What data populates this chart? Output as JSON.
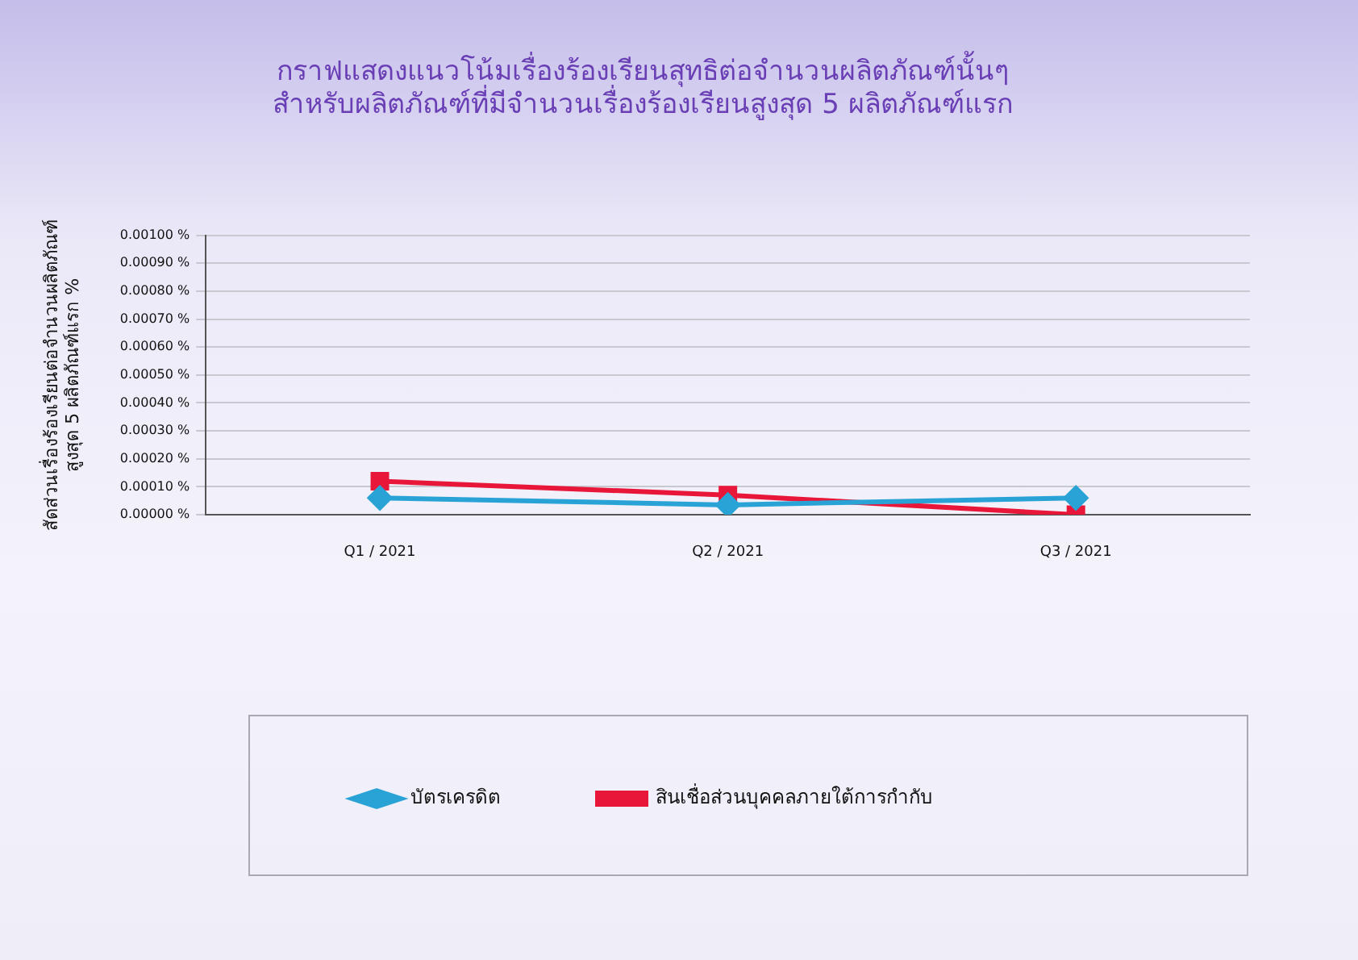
{
  "chart_data": {
    "type": "line",
    "title": "กราฟแสดงแนวโน้มเรื่องร้องเรียนสุทธิต่อจำนวนผลิตภัณฑ์นั้นๆ\nสำหรับผลิตภัณฑ์ที่มีจำนวนเรื่องร้องเรียนสูงสุด 5 ผลิตภัณฑ์แรก",
    "ylabel": "สัดส่วนเรื่องร้องเรียนต่อจำนวนผลิตภัณฑ์\nสูงสุด 5 ผลิตภัณฑ์แรก %",
    "categories": [
      "Q1 / 2021",
      "Q2 / 2021",
      "Q3 / 2021"
    ],
    "series": [
      {
        "name": "บัตรเครดิต",
        "color": "#29a3d6",
        "marker": "diamond",
        "values": [
          6e-05,
          3.5e-05,
          6e-05
        ]
      },
      {
        "name": "สินเชื่อส่วนบุคคลภายใต้การกำกับ",
        "color": "#e8173a",
        "marker": "square",
        "values": [
          0.00012,
          7e-05,
          0
        ]
      }
    ],
    "ylim": [
      0,
      0.001
    ],
    "yticks": [
      {
        "value": 0,
        "label": "0.00000 %"
      },
      {
        "value": 0.0001,
        "label": "0.00010 %"
      },
      {
        "value": 0.0002,
        "label": "0.00020 %"
      },
      {
        "value": 0.0003,
        "label": "0.00030 %"
      },
      {
        "value": 0.0004,
        "label": "0.00040 %"
      },
      {
        "value": 0.0005,
        "label": "0.00050 %"
      },
      {
        "value": 0.0006,
        "label": "0.00060 %"
      },
      {
        "value": 0.0007,
        "label": "0.00070 %"
      },
      {
        "value": 0.0008,
        "label": "0.00080 %"
      },
      {
        "value": 0.0009,
        "label": "0.00090 %"
      },
      {
        "value": 0.001,
        "label": "0.00100 %"
      }
    ],
    "grid": "y",
    "legend": "bottom",
    "line_style": "solid"
  }
}
